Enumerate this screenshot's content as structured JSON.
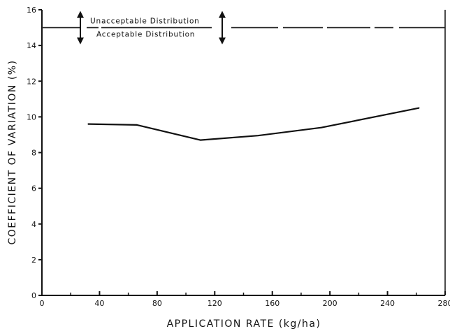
{
  "chart_data": {
    "type": "line",
    "xlabel": "APPLICATION RATE (kg/ha)",
    "ylabel": "COEFFICIENT OF VARIATION (%)",
    "xlim": [
      0,
      280
    ],
    "ylim": [
      0,
      16
    ],
    "xticks": [
      0,
      40,
      80,
      120,
      160,
      200,
      240,
      280
    ],
    "xminor": [
      20,
      60,
      100,
      140,
      180,
      220,
      260
    ],
    "yticks": [
      0,
      2,
      4,
      6,
      8,
      10,
      12,
      14,
      16
    ],
    "grid": false,
    "series": [
      {
        "x": [
          32,
          66,
          110,
          150,
          194,
          262
        ],
        "y": [
          9.6,
          9.55,
          8.7,
          8.95,
          9.4,
          10.5
        ]
      }
    ],
    "threshold": {
      "y": 15,
      "label_above": "Unacceptable Distribution",
      "label_below": "Acceptable Distribution"
    }
  }
}
